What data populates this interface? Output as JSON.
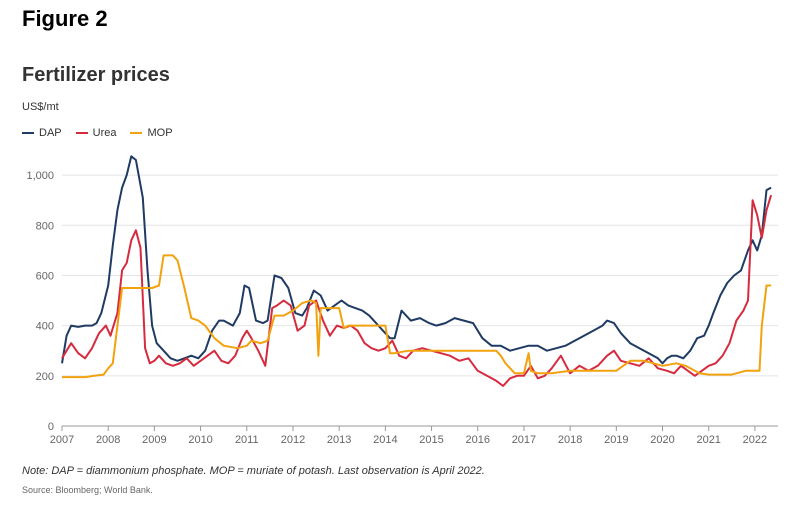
{
  "figure_label": "Figure 2",
  "chart_data": {
    "type": "line",
    "title": "Fertilizer prices",
    "ylabel": "US$/mt",
    "xlabel": "",
    "ylim": [
      0,
      1100
    ],
    "xlim": [
      2007,
      2022.5
    ],
    "yticks": [
      0,
      200,
      400,
      600,
      800,
      "1,000"
    ],
    "ytick_values": [
      0,
      200,
      400,
      600,
      800,
      1000
    ],
    "xticks": [
      "2007",
      "2008",
      "2009",
      "2010",
      "2011",
      "2012",
      "2013",
      "2014",
      "2015",
      "2016",
      "2017",
      "2018",
      "2019",
      "2020",
      "2021",
      "2022"
    ],
    "grid": true,
    "legend_position": "top-left",
    "series": [
      {
        "name": "DAP",
        "color": "#1f3b63",
        "x": [
          2007.0,
          2007.1,
          2007.2,
          2007.35,
          2007.5,
          2007.65,
          2007.75,
          2007.85,
          2008.0,
          2008.1,
          2008.2,
          2008.3,
          2008.4,
          2008.5,
          2008.6,
          2008.75,
          2008.85,
          2008.95,
          2009.05,
          2009.2,
          2009.35,
          2009.5,
          2009.65,
          2009.8,
          2009.95,
          2010.1,
          2010.25,
          2010.4,
          2010.5,
          2010.7,
          2010.85,
          2010.95,
          2011.05,
          2011.2,
          2011.35,
          2011.45,
          2011.6,
          2011.75,
          2011.9,
          2012.05,
          2012.2,
          2012.3,
          2012.45,
          2012.6,
          2012.75,
          2012.9,
          2013.05,
          2013.2,
          2013.35,
          2013.5,
          2013.65,
          2013.8,
          2013.95,
          2014.1,
          2014.2,
          2014.35,
          2014.55,
          2014.75,
          2014.95,
          2015.1,
          2015.3,
          2015.5,
          2015.7,
          2015.9,
          2016.1,
          2016.3,
          2016.5,
          2016.7,
          2016.9,
          2017.1,
          2017.3,
          2017.5,
          2017.7,
          2017.9,
          2018.1,
          2018.3,
          2018.5,
          2018.7,
          2018.8,
          2018.95,
          2019.1,
          2019.3,
          2019.5,
          2019.7,
          2019.9,
          2020.0,
          2020.1,
          2020.2,
          2020.3,
          2020.45,
          2020.6,
          2020.75,
          2020.9,
          2021.0,
          2021.1,
          2021.25,
          2021.4,
          2021.55,
          2021.7,
          2021.85,
          2021.95,
          2022.05,
          2022.15,
          2022.25,
          2022.35
        ],
        "values": [
          250,
          360,
          400,
          395,
          400,
          400,
          410,
          450,
          560,
          720,
          860,
          950,
          1000,
          1075,
          1060,
          910,
          620,
          400,
          330,
          300,
          270,
          260,
          270,
          280,
          270,
          300,
          380,
          420,
          420,
          400,
          450,
          560,
          550,
          420,
          410,
          420,
          600,
          590,
          550,
          450,
          440,
          470,
          540,
          520,
          460,
          480,
          500,
          480,
          470,
          460,
          440,
          410,
          380,
          350,
          350,
          460,
          420,
          430,
          410,
          400,
          410,
          430,
          420,
          410,
          350,
          320,
          320,
          300,
          310,
          320,
          320,
          300,
          310,
          320,
          340,
          360,
          380,
          400,
          420,
          410,
          370,
          330,
          310,
          290,
          270,
          250,
          270,
          280,
          280,
          270,
          300,
          350,
          360,
          400,
          450,
          520,
          570,
          600,
          620,
          700,
          740,
          700,
          760,
          940,
          950
        ],
        "legend_label": "DAP"
      },
      {
        "name": "Urea",
        "color": "#d62b3e",
        "x": [
          2007.0,
          2007.1,
          2007.2,
          2007.35,
          2007.5,
          2007.65,
          2007.8,
          2007.95,
          2008.05,
          2008.2,
          2008.3,
          2008.4,
          2008.5,
          2008.6,
          2008.7,
          2008.8,
          2008.9,
          2009.0,
          2009.1,
          2009.25,
          2009.4,
          2009.55,
          2009.7,
          2009.85,
          2010.0,
          2010.15,
          2010.3,
          2010.45,
          2010.6,
          2010.75,
          2010.9,
          2011.0,
          2011.1,
          2011.25,
          2011.4,
          2011.55,
          2011.65,
          2011.8,
          2011.95,
          2012.1,
          2012.25,
          2012.35,
          2012.5,
          2012.65,
          2012.8,
          2012.95,
          2013.1,
          2013.25,
          2013.4,
          2013.55,
          2013.7,
          2013.85,
          2014.0,
          2014.15,
          2014.3,
          2014.45,
          2014.6,
          2014.8,
          2015.0,
          2015.2,
          2015.4,
          2015.6,
          2015.8,
          2016.0,
          2016.2,
          2016.4,
          2016.55,
          2016.7,
          2016.85,
          2017.0,
          2017.15,
          2017.3,
          2017.45,
          2017.6,
          2017.8,
          2018.0,
          2018.2,
          2018.4,
          2018.6,
          2018.8,
          2018.95,
          2019.1,
          2019.3,
          2019.5,
          2019.7,
          2019.9,
          2020.1,
          2020.25,
          2020.4,
          2020.55,
          2020.7,
          2020.85,
          2021.0,
          2021.15,
          2021.3,
          2021.45,
          2021.6,
          2021.75,
          2021.85,
          2021.95,
          2022.05,
          2022.15,
          2022.25,
          2022.35
        ],
        "values": [
          270,
          300,
          330,
          290,
          270,
          310,
          370,
          400,
          360,
          450,
          620,
          650,
          740,
          780,
          710,
          310,
          250,
          260,
          280,
          250,
          240,
          250,
          270,
          240,
          260,
          280,
          300,
          260,
          250,
          280,
          350,
          380,
          350,
          300,
          240,
          470,
          480,
          500,
          480,
          380,
          400,
          480,
          500,
          420,
          360,
          400,
          390,
          400,
          380,
          330,
          310,
          300,
          310,
          340,
          280,
          270,
          300,
          310,
          300,
          290,
          280,
          260,
          270,
          220,
          200,
          180,
          160,
          190,
          200,
          200,
          240,
          190,
          200,
          230,
          280,
          210,
          240,
          220,
          240,
          280,
          300,
          260,
          250,
          240,
          270,
          230,
          220,
          210,
          240,
          220,
          200,
          220,
          240,
          250,
          280,
          330,
          420,
          460,
          500,
          900,
          840,
          750,
          860,
          920
        ],
        "legend_label": "Urea"
      },
      {
        "name": "MOP",
        "color": "#f2a20e",
        "x": [
          2007.0,
          2007.5,
          2007.7,
          2007.9,
          2008.0,
          2008.1,
          2008.3,
          2008.5,
          2008.8,
          2008.95,
          2009.1,
          2009.2,
          2009.4,
          2009.5,
          2009.65,
          2009.8,
          2009.95,
          2010.1,
          2010.3,
          2010.5,
          2010.8,
          2011.0,
          2011.1,
          2011.3,
          2011.45,
          2011.6,
          2011.8,
          2012.0,
          2012.2,
          2012.4,
          2012.5,
          2012.55,
          2012.6,
          2012.8,
          2013.0,
          2013.1,
          2013.2,
          2013.4,
          2013.6,
          2013.8,
          2014.0,
          2014.1,
          2014.2,
          2014.5,
          2014.8,
          2015.0,
          2015.5,
          2016.0,
          2016.4,
          2016.5,
          2016.6,
          2016.8,
          2017.0,
          2017.1,
          2017.15,
          2017.3,
          2017.6,
          2018.0,
          2018.5,
          2019.0,
          2019.3,
          2019.6,
          2019.8,
          2020.0,
          2020.3,
          2020.5,
          2020.8,
          2021.0,
          2021.2,
          2021.5,
          2021.6,
          2021.8,
          2022.0,
          2022.1,
          2022.15,
          2022.25,
          2022.35
        ],
        "values": [
          195,
          195,
          200,
          205,
          230,
          250,
          550,
          550,
          550,
          550,
          560,
          680,
          680,
          660,
          550,
          430,
          420,
          400,
          350,
          320,
          310,
          320,
          340,
          330,
          340,
          440,
          440,
          460,
          490,
          500,
          490,
          280,
          470,
          470,
          470,
          390,
          400,
          400,
          400,
          400,
          400,
          290,
          290,
          300,
          300,
          300,
          300,
          300,
          300,
          280,
          250,
          210,
          210,
          290,
          220,
          210,
          210,
          220,
          220,
          220,
          260,
          260,
          250,
          240,
          250,
          240,
          210,
          205,
          205,
          205,
          210,
          220,
          220,
          220,
          400,
          560,
          560
        ],
        "legend_label": "MOP"
      }
    ]
  },
  "note": "Note: DAP = diammonium phosphate. MOP = muriate of potash. Last observation is April 2022.",
  "source": "Source: Bloomberg; World Bank."
}
